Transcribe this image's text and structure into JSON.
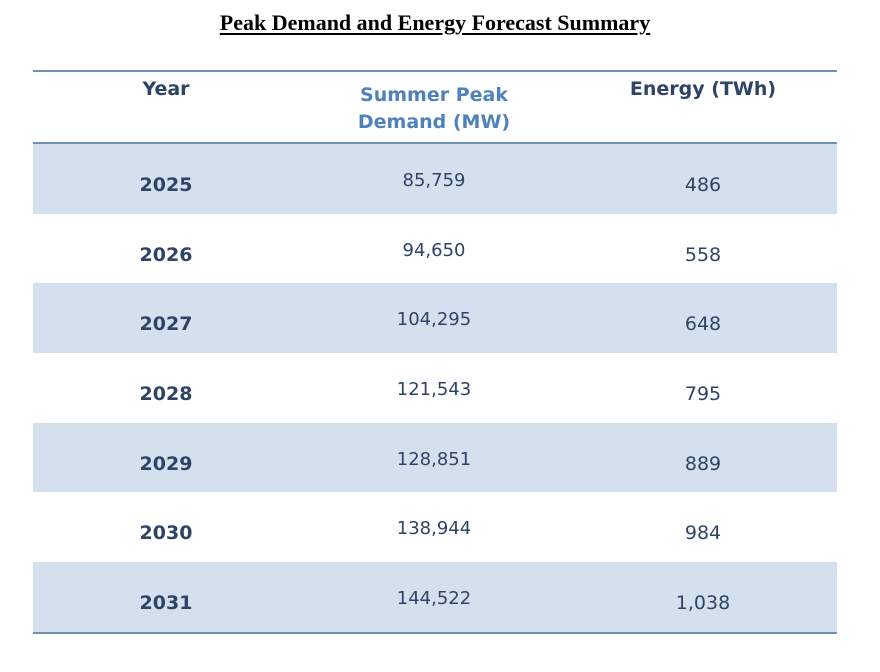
{
  "title": "Peak Demand and Energy Forecast Summary",
  "table": {
    "headers": {
      "year": "Year",
      "peak_line1": "Summer Peak",
      "peak_line2": "Demand (MW)",
      "energy": "Energy (TWh)"
    },
    "rows": [
      {
        "year": "2025",
        "peak": "85,759",
        "energy": "486"
      },
      {
        "year": "2026",
        "peak": "94,650",
        "energy": "558"
      },
      {
        "year": "2027",
        "peak": "104,295",
        "energy": "648"
      },
      {
        "year": "2028",
        "peak": "121,543",
        "energy": "795"
      },
      {
        "year": "2029",
        "peak": "128,851",
        "energy": "889"
      },
      {
        "year": "2030",
        "peak": "138,944",
        "energy": "984"
      },
      {
        "year": "2031",
        "peak": "144,522",
        "energy": "1,038"
      }
    ]
  },
  "colors": {
    "shaded_row": "#d5e0ee",
    "rule": "#6e8fb8",
    "header_accent": "#4f81bd",
    "text": "#2e4466"
  }
}
